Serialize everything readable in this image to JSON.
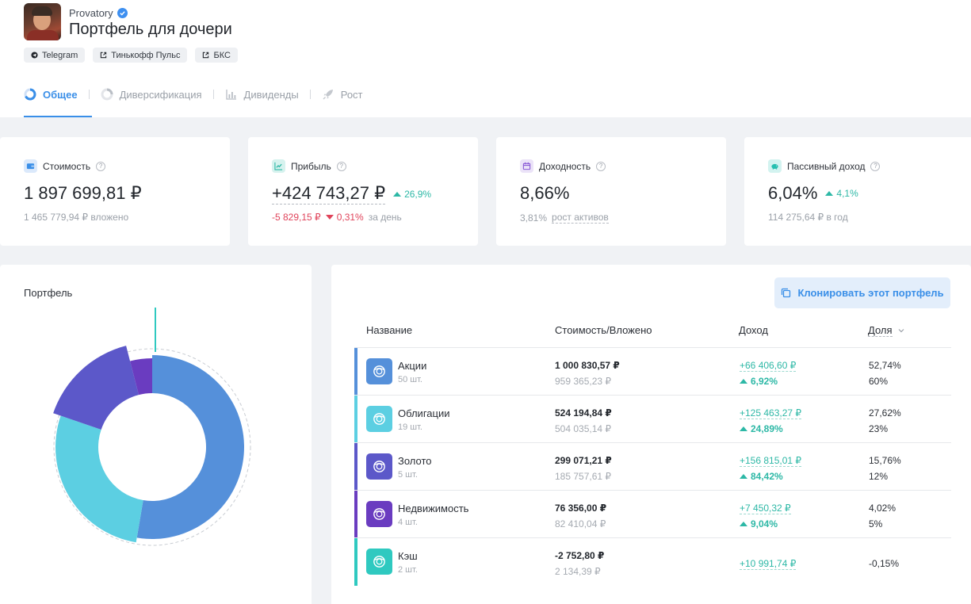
{
  "header": {
    "author": "Provatory",
    "title": "Портфель для дочери",
    "links": [
      "Telegram",
      "Тинькофф Пульс",
      "БКС"
    ],
    "tabs": [
      "Общее",
      "Диверсификация",
      "Дивиденды",
      "Рост"
    ]
  },
  "stats": {
    "value": {
      "label": "Стоимость",
      "amount": "1 897 699,81 ₽",
      "sub": "1 465 779,94 ₽ вложено"
    },
    "profit": {
      "label": "Прибыль",
      "amount": "+424 743,27 ₽",
      "delta": "26,9%",
      "day_amount": "-5 829,15 ₽",
      "day_pct": "0,31%",
      "day_suffix": "за день"
    },
    "yield": {
      "label": "Доходность",
      "amount": "8,66%",
      "sub_value": "3,81%",
      "sub_link": "рост активов"
    },
    "passive": {
      "label": "Пассивный доход",
      "amount": "6,04%",
      "delta": "4,1%",
      "sub": "114 275,64 ₽ в год"
    }
  },
  "portfolio_chart": {
    "title": "Портфель",
    "segments": [
      {
        "name": "Акции",
        "share": 52.74,
        "color": "#5590da"
      },
      {
        "name": "Облигации",
        "share": 27.62,
        "color": "#5ccfe2"
      },
      {
        "name": "Золото",
        "share": 15.76,
        "color": "#5c58c9"
      },
      {
        "name": "Недвижимость",
        "share": 4.02,
        "color": "#6a3cc0"
      }
    ]
  },
  "table": {
    "clone_label": "Клонировать этот портфель",
    "headers": {
      "name": "Название",
      "value": "Стоимость/Вложено",
      "income": "Доход",
      "share": "Доля"
    },
    "rows": [
      {
        "name": "Акции",
        "count": "50 шт.",
        "value": "1 000 830,57 ₽",
        "invested": "959 365,23 ₽",
        "income": "+66 406,60 ₽",
        "income_pct": "6,92%",
        "share": "52,74%",
        "target": "60%",
        "color": "#5590da"
      },
      {
        "name": "Облигации",
        "count": "19 шт.",
        "value": "524 194,84 ₽",
        "invested": "504 035,14 ₽",
        "income": "+125 463,27 ₽",
        "income_pct": "24,89%",
        "share": "27,62%",
        "target": "23%",
        "color": "#5ccfe2"
      },
      {
        "name": "Золото",
        "count": "5 шт.",
        "value": "299 071,21 ₽",
        "invested": "185 757,61 ₽",
        "income": "+156 815,01 ₽",
        "income_pct": "84,42%",
        "share": "15,76%",
        "target": "12%",
        "color": "#5c58c9"
      },
      {
        "name": "Недвижимость",
        "count": "4 шт.",
        "value": "76 356,00 ₽",
        "invested": "82 410,04 ₽",
        "income": "+7 450,32 ₽",
        "income_pct": "9,04%",
        "share": "4,02%",
        "target": "5%",
        "color": "#6a3cc0"
      },
      {
        "name": "Кэш",
        "count": "2 шт.",
        "value": "-2 752,80 ₽",
        "invested": "2 134,39 ₽",
        "income": "+10 991,74 ₽",
        "share": "-0,15%",
        "color": "#2fc9c0"
      }
    ]
  }
}
